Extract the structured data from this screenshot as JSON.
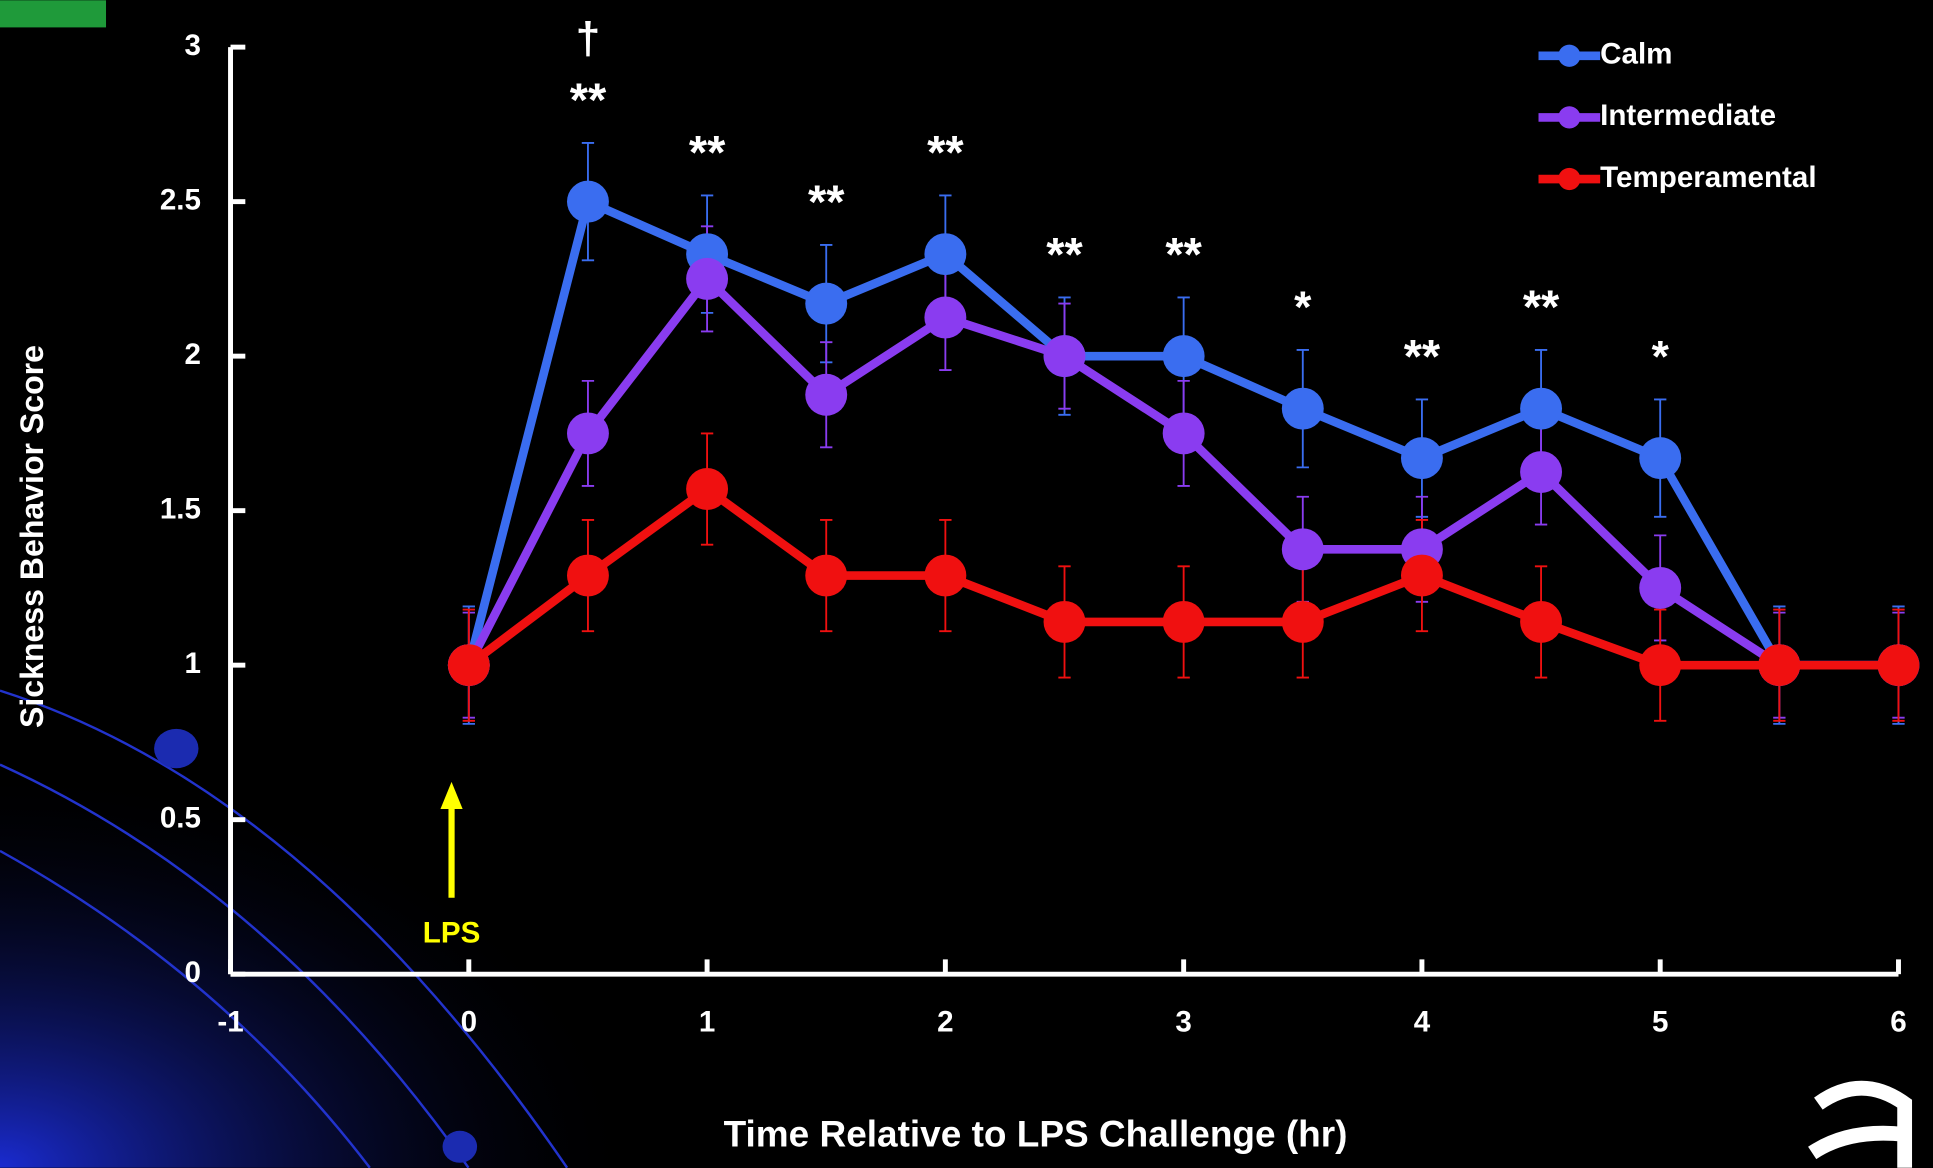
{
  "chart_data": {
    "type": "line",
    "y_label": "Sickness Behavior Score",
    "x_label": "Time Relative to LPS Challenge (hr)",
    "arrow_label": "LPS",
    "x": [
      0,
      0.5,
      1,
      1.5,
      2,
      2.5,
      3,
      3.5,
      4,
      4.5,
      5,
      5.5,
      6
    ],
    "series": [
      {
        "name": "Calm",
        "color": "#3a6df0",
        "values": [
          1,
          2.5,
          2.33,
          2.17,
          2.33,
          2.0,
          2.0,
          1.83,
          1.67,
          1.83,
          1.67,
          1.0,
          1.0
        ],
        "errors": [
          0.19,
          0.19,
          0.19,
          0.19,
          0.19,
          0.19,
          0.19,
          0.19,
          0.19,
          0.19,
          0.19,
          0.19,
          0.19
        ]
      },
      {
        "name": "Intermediate",
        "color": "#8a3cf0",
        "values": [
          1,
          1.75,
          2.25,
          1.875,
          2.125,
          2.0,
          1.75,
          1.375,
          1.375,
          1.625,
          1.25,
          1.0,
          1.0
        ],
        "errors": [
          0.17,
          0.17,
          0.17,
          0.17,
          0.17,
          0.17,
          0.17,
          0.17,
          0.17,
          0.17,
          0.17,
          0.17,
          0.17
        ]
      },
      {
        "name": "Temperamental",
        "color": "#f01010",
        "values": [
          1,
          1.29,
          1.57,
          1.29,
          1.29,
          1.14,
          1.14,
          1.14,
          1.29,
          1.14,
          1.0,
          1.0,
          1.0
        ],
        "errors": [
          0.18,
          0.18,
          0.18,
          0.18,
          0.18,
          0.18,
          0.18,
          0.18,
          0.18,
          0.18,
          0.18,
          0.18,
          0.18
        ]
      }
    ],
    "annotations": [
      {
        "x": 0.5,
        "text": "**"
      },
      {
        "x": 0.5,
        "text": "†"
      },
      {
        "x": 1,
        "text": "**"
      },
      {
        "x": 1.5,
        "text": "**"
      },
      {
        "x": 2,
        "text": "**"
      },
      {
        "x": 2.5,
        "text": "**"
      },
      {
        "x": 3,
        "text": "**"
      },
      {
        "x": 3.5,
        "text": "*"
      },
      {
        "x": 4,
        "text": "**"
      },
      {
        "x": 4.5,
        "text": "**"
      },
      {
        "x": 5,
        "text": "*"
      }
    ],
    "xlim": [
      -1,
      6
    ],
    "xticks": [
      -1,
      0,
      1,
      2,
      3,
      4,
      5,
      6
    ],
    "ylim": [
      0,
      3
    ],
    "yticks": [
      0,
      0.5,
      1,
      1.5,
      2,
      2.5,
      3
    ],
    "legend": "top-right"
  }
}
